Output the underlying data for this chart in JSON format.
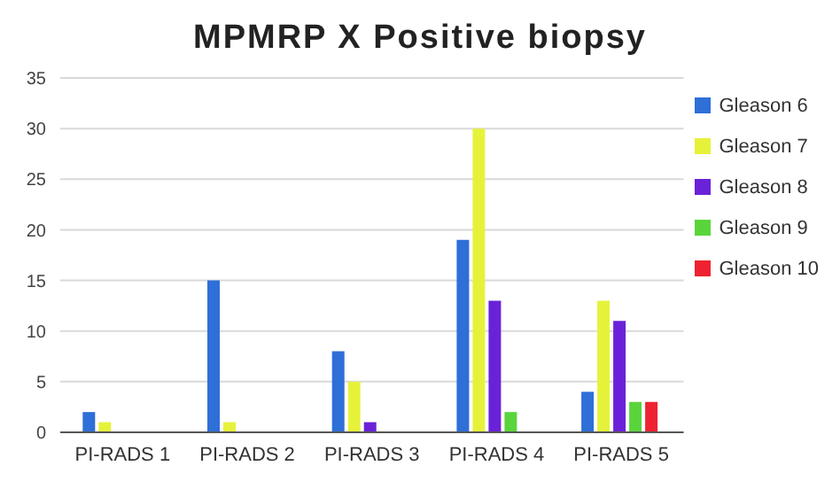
{
  "chart_data": {
    "type": "bar",
    "title": "MPMRP X Positive biopsy",
    "categories": [
      "PI-RADS 1",
      "PI-RADS 2",
      "PI-RADS 3",
      "PI-RADS 4",
      "PI-RADS 5"
    ],
    "series": [
      {
        "name": "Gleason 6",
        "color": "#2e6fd8",
        "values": [
          2,
          15,
          8,
          19,
          4
        ]
      },
      {
        "name": "Gleason 7",
        "color": "#e6f23a",
        "values": [
          1,
          1,
          5,
          30,
          13
        ]
      },
      {
        "name": "Gleason 8",
        "color": "#6a22d8",
        "values": [
          0,
          0,
          1,
          13,
          11
        ]
      },
      {
        "name": "Gleason 9",
        "color": "#5ad43c",
        "values": [
          0,
          0,
          0,
          2,
          3
        ]
      },
      {
        "name": "Gleason 10",
        "color": "#ee2230",
        "values": [
          0,
          0,
          0,
          0,
          3
        ]
      }
    ],
    "ylim": [
      0,
      35
    ],
    "yticks": [
      0,
      5,
      10,
      15,
      20,
      25,
      30,
      35
    ],
    "grid": "y",
    "legend": "top right"
  }
}
